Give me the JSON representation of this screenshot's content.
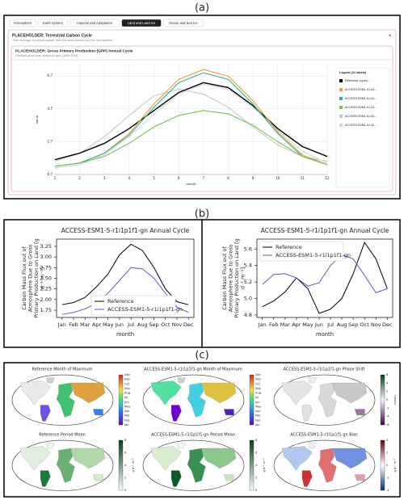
{
  "panels": [
    "(a)",
    "(b)",
    "(c)"
  ],
  "ui": {
    "tabs": [
      "Atmosphere",
      "Earth System",
      "Impacts and Adaptation",
      "Land and Land Ice",
      "Ocean and Sea Ice"
    ],
    "active_tab": 3,
    "card_title": "PLACEHOLDER: Terrestrial Carbon Cycle",
    "card_subtitle": "Time-average of carbon uptake from the land surface and the atmosphere",
    "chart_card_title": "PLACEHOLDER: Gross Primary Production (GPP) Annual Cycle",
    "chart_card_subtitle": "Climatological mean seasonal cycle (1985-2014)",
    "legend_title": "Legend (21 labels)"
  },
  "chart_data": [
    {
      "type": "line",
      "xlabel": "month",
      "ylabel": [
        "value"
      ],
      "x": [
        1,
        2,
        3,
        4,
        5,
        6,
        7,
        8,
        9,
        10,
        11,
        12
      ],
      "xlim": [
        1,
        12
      ],
      "xticks": [
        1,
        2,
        3,
        4,
        5,
        6,
        7,
        8,
        9,
        10,
        11,
        12
      ],
      "ylim": [
        0.7,
        7.4
      ],
      "yticks": [
        0.7,
        2.7,
        4.7,
        6.7
      ],
      "grid": true,
      "legend": "right",
      "series": [
        {
          "name": "Reference (cycle)...",
          "color": "#000000",
          "values": [
            1.6,
            2.0,
            2.6,
            3.5,
            4.6,
            5.7,
            6.3,
            6.0,
            4.9,
            3.5,
            2.4,
            1.8
          ]
        },
        {
          "name": "ACCESS-ESM1-5-r10i...",
          "color": "#f0a030",
          "values": [
            1.2,
            1.4,
            2.0,
            3.2,
            5.0,
            6.5,
            7.1,
            6.7,
            5.2,
            3.3,
            1.9,
            1.3
          ]
        },
        {
          "name": "ACCESS-ESM1-5-r11i...",
          "color": "#30b0a0",
          "values": [
            1.2,
            1.4,
            2.0,
            3.1,
            4.8,
            6.3,
            6.9,
            6.5,
            5.0,
            3.2,
            1.8,
            1.3
          ]
        },
        {
          "name": "ACCESS-ESM1-5-r12i...",
          "color": "#7cc050",
          "values": [
            1.2,
            1.4,
            1.8,
            2.6,
            3.6,
            4.3,
            4.6,
            4.4,
            3.7,
            2.7,
            1.8,
            1.3
          ]
        },
        {
          "name": "ACCESS-ESM1-5-r13i...",
          "color": "#c8c8c8",
          "values": [
            1.5,
            2.0,
            3.0,
            4.3,
            5.5,
            5.9,
            5.6,
            4.8,
            3.6,
            2.5,
            1.8,
            1.5
          ]
        },
        {
          "name": "ACCESS-ESM1-5-r14i...",
          "color": "#d4d4d4",
          "values": [
            1.1,
            1.3,
            1.9,
            3.0,
            4.4,
            5.6,
            6.2,
            5.9,
            4.8,
            3.4,
            2.1,
            1.4
          ]
        }
      ]
    },
    {
      "type": "line",
      "title": "ACCESS-ESM1-5-r1i1p1f1-gn Annual Cycle",
      "xlabel": "month",
      "ylabel": [
        "Carbon Mass Flux out of",
        "Atmosphere Due to Gross",
        "Primary Production on Land [g",
        "d⁻¹ m⁻²]"
      ],
      "categories": [
        "Jan",
        "Feb",
        "Mar",
        "Apr",
        "May",
        "Jun",
        "Jul",
        "Aug",
        "Sep",
        "Oct",
        "Nov",
        "Dec"
      ],
      "ylim": [
        1.58,
        3.42
      ],
      "yticks": [
        1.75,
        {
          "value": 2,
          "label": "2.00"
        },
        2.25,
        {
          "value": 2.5,
          "label": "2.50"
        },
        2.75,
        {
          "value": 3,
          "label": "3.00"
        },
        3.25
      ],
      "grid": false,
      "legend": "lower center",
      "series": [
        {
          "name": "Reference",
          "color": "#000000",
          "values": [
            1.88,
            1.93,
            2.05,
            2.3,
            2.6,
            3.05,
            3.3,
            3.15,
            2.75,
            2.25,
            1.95,
            1.88
          ]
        },
        {
          "name": "ACCESS-ESM1-5-r1i1p1f1-gn",
          "color": "#6a4fe0",
          "values": [
            1.65,
            1.7,
            1.78,
            1.92,
            2.15,
            2.45,
            2.75,
            2.72,
            2.5,
            2.15,
            1.82,
            1.7
          ]
        }
      ]
    },
    {
      "type": "line",
      "title": "ACCESS-ESM1-5-r1i1p1f1-gn Annual Cycle",
      "xlabel": "month",
      "ylabel": [
        "Carbon Mass Flux out of",
        "Atmosphere Due to Gross",
        "Primary Production on Land [g",
        "d⁻¹ m⁻²]"
      ],
      "categories": [
        "Jan",
        "Feb",
        "Mar",
        "Apr",
        "May",
        "Jun",
        "Jul",
        "Aug",
        "Sep",
        "Oct",
        "Nov",
        "Dec"
      ],
      "ylim": [
        4.77,
        5.72
      ],
      "yticks": [
        4.8,
        {
          "value": 5,
          "label": "5.0"
        },
        5.2,
        5.4,
        5.6
      ],
      "grid": false,
      "legend": "upper left",
      "series": [
        {
          "name": "Reference",
          "color": "#000000",
          "values": [
            4.9,
            4.97,
            5.08,
            5.25,
            5.12,
            4.82,
            4.87,
            5.0,
            5.3,
            5.68,
            5.48,
            5.12
          ]
        },
        {
          "name": "ACCESS-ESM1-5-r1i1p1f1-gn",
          "color": "#6a4fe0",
          "values": [
            5.17,
            5.29,
            5.3,
            5.25,
            5.15,
            5.19,
            5.4,
            5.53,
            5.48,
            5.28,
            5.07,
            5.12
          ]
        }
      ]
    }
  ],
  "maps": [
    {
      "title": "Reference Month of Maximum",
      "colorbar": [
        "Dec",
        "Nov",
        "Oct",
        "Sep",
        "Aug",
        "Jul",
        "Jun",
        "May",
        "Apr",
        "Mar",
        "Feb",
        "Jan"
      ]
    },
    {
      "title": "ACCESS-ESM1-5-r1i1p1f1-gn Month of Maximum",
      "colorbar": [
        "Dec",
        "Nov",
        "Oct",
        "Sep",
        "Aug",
        "Jul",
        "Jun",
        "May",
        "Apr",
        "Mar",
        "Feb",
        "Jan"
      ]
    },
    {
      "title": "ACCESS-ESM1-5-r1i1p1f1-gn Phase Shift",
      "colorbar": [
        "6",
        "4",
        "2",
        "0",
        "-2",
        "-4",
        "-6"
      ],
      "unit": "month"
    },
    {
      "title": "Reference Period Mean",
      "colorbar": [
        "8",
        "6",
        "4",
        "2",
        "0"
      ],
      "unit": "g d⁻¹ m⁻²"
    },
    {
      "title": "ACCESS-ESM1-5-r1i1p1f1-gn Period Mean",
      "colorbar": [
        "8",
        "6",
        "4",
        "2",
        "0"
      ],
      "unit": "g d⁻¹ m⁻²"
    },
    {
      "title": "ACCESS-ESM1-5-r1i1p1f1-gn Bias",
      "colorbar": [
        "4",
        "2",
        "0",
        "-2",
        "-4"
      ],
      "unit": "g d⁻¹ m⁻²"
    }
  ]
}
